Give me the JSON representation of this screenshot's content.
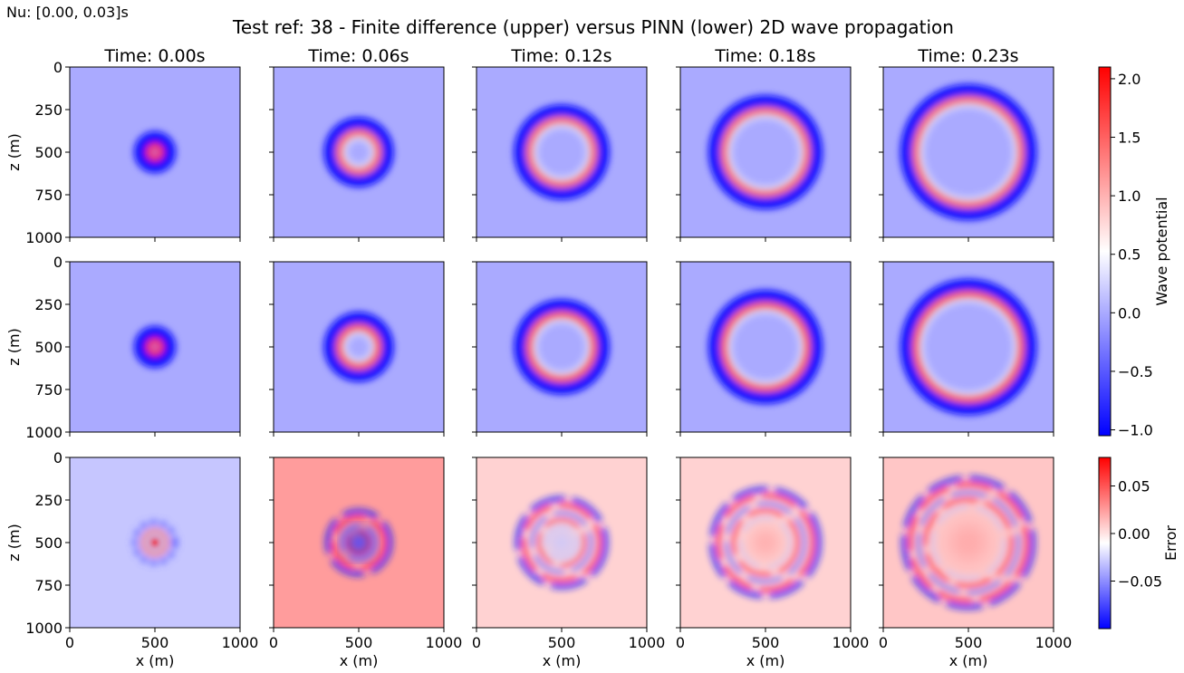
{
  "figure": {
    "corner_text": "Nu: [0.00, 0.03]s",
    "title": "Test ref: 38 - Finite difference (upper) versus PINN (lower) 2D wave propagation"
  },
  "chart_data": {
    "type": "heatmap",
    "layout": "3x5 grid of square heatmaps",
    "columns": [
      {
        "time_label": "Time: 0.00s",
        "time_s": 0.0,
        "ring_radius_m": 50
      },
      {
        "time_label": "Time: 0.06s",
        "time_s": 0.06,
        "ring_radius_m": 130
      },
      {
        "time_label": "Time: 0.12s",
        "time_s": 0.12,
        "ring_radius_m": 205
      },
      {
        "time_label": "Time: 0.18s",
        "time_s": 0.18,
        "ring_radius_m": 260
      },
      {
        "time_label": "Time: 0.23s",
        "time_s": 0.23,
        "ring_radius_m": 325
      }
    ],
    "rows": [
      {
        "id": "finite-difference",
        "colorbar": "wave"
      },
      {
        "id": "pinn",
        "colorbar": "wave"
      },
      {
        "id": "error",
        "colorbar": "error"
      }
    ],
    "source_center_m": [
      500,
      500
    ],
    "x_axis": {
      "label": "x (m)",
      "range": [
        0,
        1000
      ],
      "ticks": [
        "0",
        "500",
        "1000"
      ]
    },
    "y_axis": {
      "label": "z (m)",
      "range": [
        0,
        1000
      ],
      "inverted": true,
      "ticks": [
        "0",
        "250",
        "500",
        "750",
        "1000"
      ]
    },
    "colorbars": {
      "wave": {
        "label": "Wave potential",
        "range": [
          -1.05,
          2.1
        ],
        "colormap": "bwr",
        "ticks": [
          {
            "value": 2.0,
            "label": "2.0"
          },
          {
            "value": 1.5,
            "label": "1.5"
          },
          {
            "value": 1.0,
            "label": "1.0"
          },
          {
            "value": 0.5,
            "label": "0.5"
          },
          {
            "value": 0.0,
            "label": "0.0"
          },
          {
            "value": -0.5,
            "label": "−0.5"
          },
          {
            "value": -1.0,
            "label": "−1.0"
          }
        ]
      },
      "error": {
        "label": "Error",
        "range": [
          -0.1,
          0.08
        ],
        "colormap": "bwr",
        "ticks": [
          {
            "value": 0.05,
            "label": "0.05"
          },
          {
            "value": 0.0,
            "label": "0.00"
          },
          {
            "value": -0.05,
            "label": "−0.05"
          }
        ]
      }
    },
    "error_background": [
      -0.03,
      0.025,
      0.006,
      0.006,
      0.01
    ]
  }
}
